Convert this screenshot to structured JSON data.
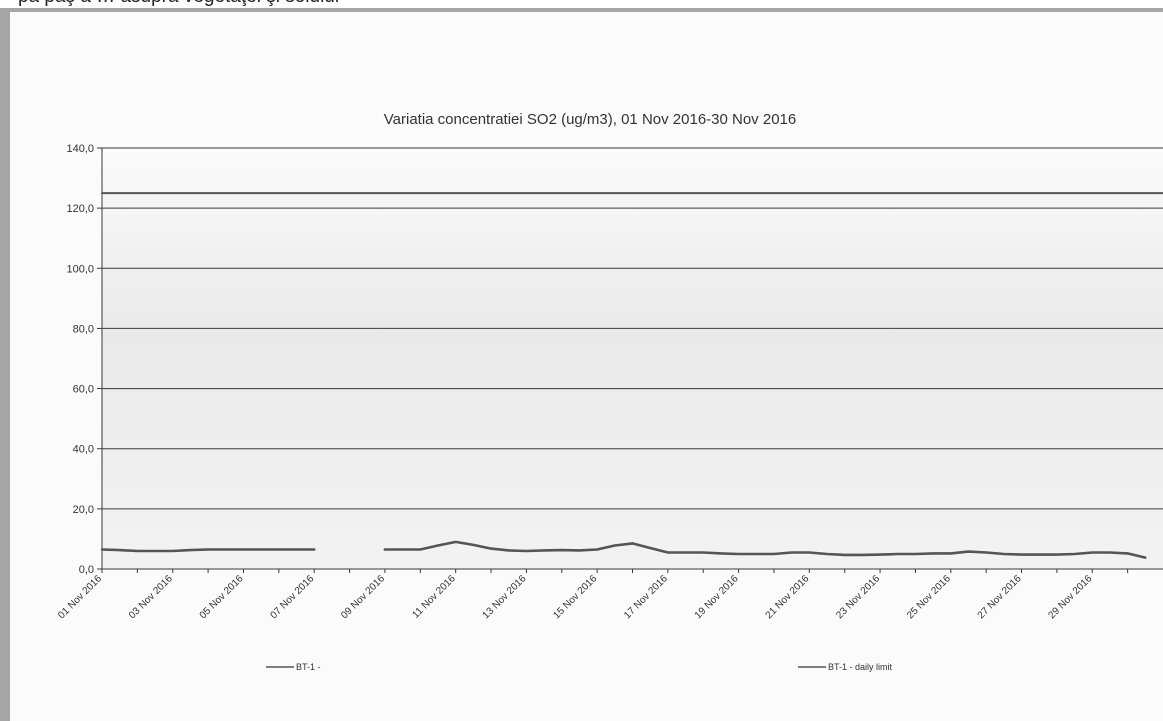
{
  "caption": "pâ pâş â … asupra vegetaţei şi solului",
  "chart_data": {
    "type": "line",
    "title": "Variatia concentratiei SO2 (ug/m3), 01 Nov 2016-30 Nov 2016",
    "xlabel": "",
    "ylabel": "",
    "ylim": [
      0,
      140
    ],
    "y_ticks": [
      "0,0",
      "20,0",
      "40,0",
      "60,0",
      "80,0",
      "100,0",
      "120,0",
      "140,0"
    ],
    "y_tick_values": [
      0,
      20,
      40,
      60,
      80,
      100,
      120,
      140
    ],
    "x_ticks": [
      "01 Nov 2016",
      "03 Nov 2016",
      "05 Nov 2016",
      "07 Nov 2016",
      "09 Nov 2016",
      "11 Nov 2016",
      "13 Nov 2016",
      "15 Nov 2016",
      "17 Nov 2016",
      "19 Nov 2016",
      "21 Nov 2016",
      "23 Nov 2016",
      "25 Nov 2016",
      "27 Nov 2016",
      "29 Nov 2016"
    ],
    "x_tick_days": [
      1,
      3,
      5,
      7,
      9,
      11,
      13,
      15,
      17,
      19,
      21,
      23,
      25,
      27,
      29
    ],
    "grid": true,
    "legend": "bottom",
    "series": [
      {
        "name": "BT-1 -",
        "color": "#555555",
        "x": [
          1,
          1.5,
          2,
          2.5,
          3,
          3.5,
          4,
          4.5,
          5,
          5.5,
          6,
          6.5,
          7,
          7.5,
          9,
          9.5,
          10,
          10.5,
          11,
          11.5,
          12,
          12.5,
          13,
          13.5,
          14,
          14.5,
          15,
          15.5,
          16,
          16.5,
          17,
          17.5,
          18,
          18.5,
          19,
          19.5,
          20,
          20.5,
          21,
          21.5,
          22,
          22.5,
          23,
          23.5,
          24,
          24.5,
          25,
          25.5,
          26,
          26.5,
          27,
          27.5,
          28,
          28.5,
          29,
          29.5,
          30,
          30.5
        ],
        "values": [
          6.5,
          6.3,
          6.0,
          6.0,
          6.0,
          6.3,
          6.5,
          6.5,
          6.5,
          6.5,
          6.5,
          6.5,
          6.5,
          null,
          6.5,
          6.5,
          6.5,
          7.8,
          9.0,
          8.0,
          6.8,
          6.2,
          6.0,
          6.2,
          6.3,
          6.2,
          6.5,
          7.8,
          8.5,
          7.0,
          5.5,
          5.5,
          5.5,
          5.2,
          5.0,
          5.0,
          5.0,
          5.5,
          5.5,
          5.0,
          4.7,
          4.7,
          4.8,
          5.0,
          5.0,
          5.2,
          5.2,
          5.8,
          5.5,
          5.0,
          4.8,
          4.8,
          4.8,
          5.0,
          5.5,
          5.5,
          5.2,
          3.8
        ]
      },
      {
        "name": "BT-1 - daily limit",
        "color": "#555555",
        "x": [
          1,
          31
        ],
        "values": [
          125,
          125
        ]
      }
    ]
  }
}
